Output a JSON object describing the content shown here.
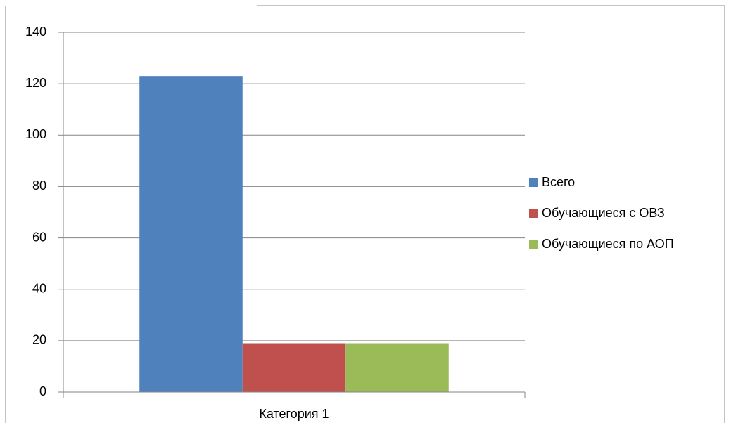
{
  "chart_data": {
    "type": "bar",
    "categories": [
      "Категория 1"
    ],
    "series": [
      {
        "name": "Всего",
        "color": "#4f81bd",
        "values": [
          123
        ]
      },
      {
        "name": "Обучающиеся с ОВЗ",
        "color": "#c0504d",
        "values": [
          19
        ]
      },
      {
        "name": "Обучающиеся по АОП",
        "color": "#9bbb59",
        "values": [
          19
        ]
      }
    ],
    "ylim": [
      0,
      140
    ],
    "yticks": [
      0,
      20,
      40,
      60,
      80,
      100,
      120,
      140
    ],
    "grid": true,
    "legend": "right"
  }
}
